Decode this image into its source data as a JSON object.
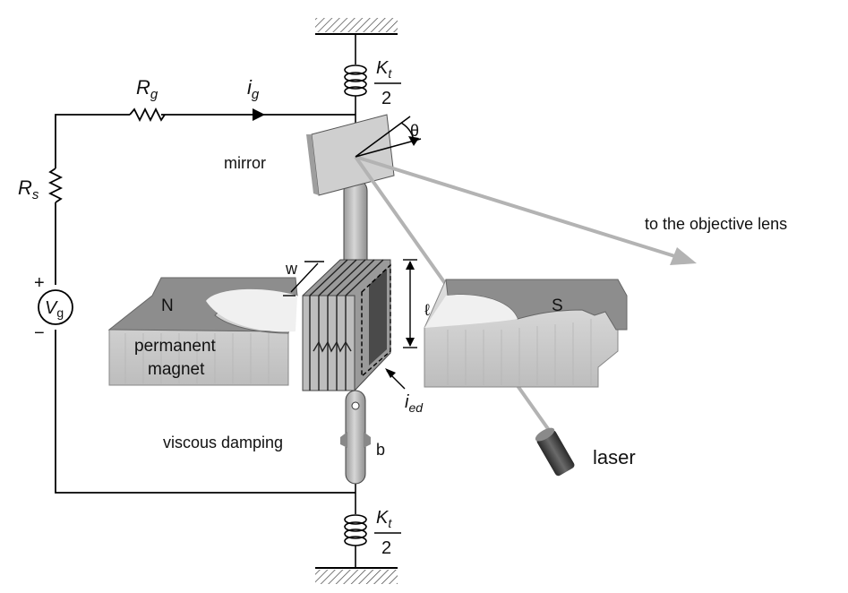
{
  "labels": {
    "Rg_main": "R",
    "Rg_sub": "g",
    "ig_main": "i",
    "ig_sub": "g",
    "Rs_main": "R",
    "Rs_sub": "s",
    "Vg_main": "V",
    "Vg_sub": "g",
    "plus": "+",
    "minus": "−",
    "Kt_main": "K",
    "Kt_sub": "t",
    "Kt_den": "2",
    "theta": "θ",
    "mirror": "mirror",
    "objective": "to the objective lens",
    "w": "w",
    "ell": "ℓ",
    "N": "N",
    "S": "S",
    "magnet1": "permanent",
    "magnet2": "magnet",
    "ied_main": "i",
    "ied_sub": "ed",
    "damping": "viscous damping",
    "b": "b",
    "laser": "laser"
  },
  "colors": {
    "magnet_top": "#8c8c8c",
    "magnet_side": "#d0d0d0",
    "coil": "#8a8a8a",
    "beam": "#b8b8b8",
    "wire": "#000000"
  }
}
